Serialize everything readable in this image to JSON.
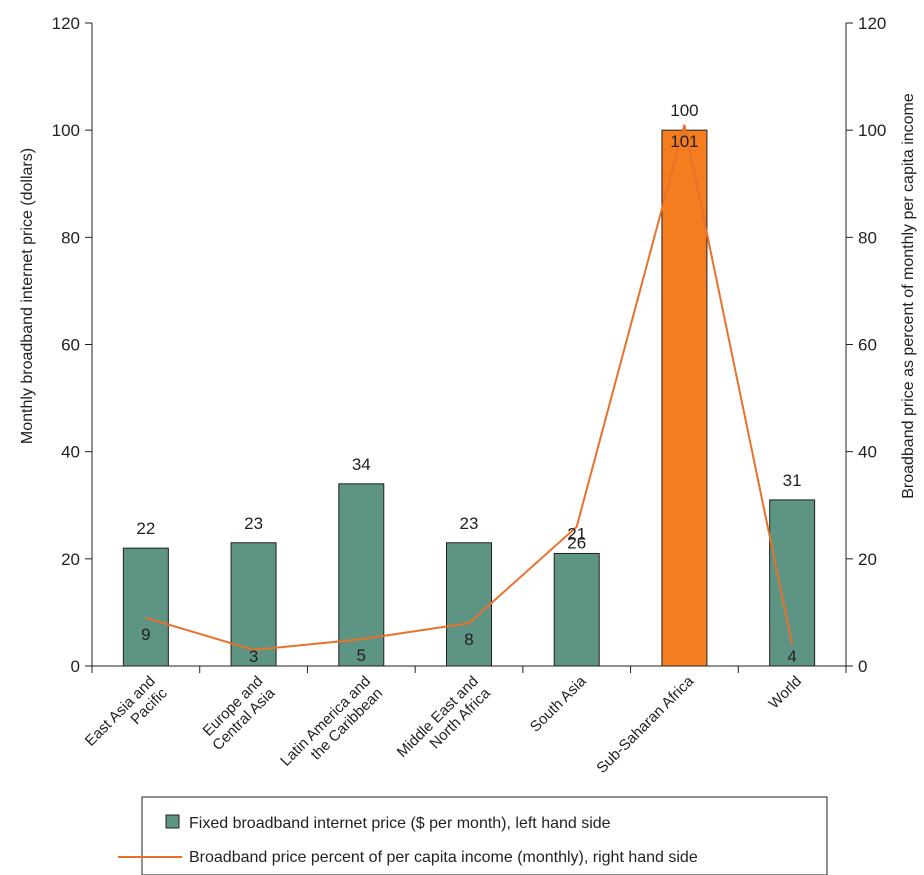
{
  "chart_data": {
    "type": "bar",
    "categories": [
      "East Asia and\nPacific",
      "Europe and\nCentral Asia",
      "Latin America and\nthe Caribbean",
      "Middle East and\nNorth Africa",
      "South Asia",
      "Sub-Saharan Africa",
      "World"
    ],
    "series": [
      {
        "name": "Fixed broadband internet price ($ per month), left hand side",
        "axis": "left",
        "type": "bar",
        "values": [
          22,
          23,
          34,
          23,
          21,
          100,
          31
        ],
        "color": "#5e9484",
        "highlight_index": 5,
        "highlight_color": "#f47d20"
      },
      {
        "name": "Broadband price percent of per capita income (monthly), right hand side",
        "axis": "right",
        "type": "line",
        "values": [
          9,
          3,
          5,
          8,
          26,
          101,
          4
        ],
        "color": "#e8712b"
      }
    ],
    "ylabel": "Monthly broadband internet price (dollars)",
    "y2label": "Broadband price as percent of monthly per capita income",
    "ylim": [
      0,
      120
    ],
    "y2lim": [
      0,
      120
    ],
    "yticks": [
      0,
      20,
      40,
      60,
      80,
      100,
      120
    ],
    "y2ticks": [
      0,
      20,
      40,
      60,
      80,
      100,
      120
    ],
    "legend_position": "bottom",
    "grid": false
  }
}
